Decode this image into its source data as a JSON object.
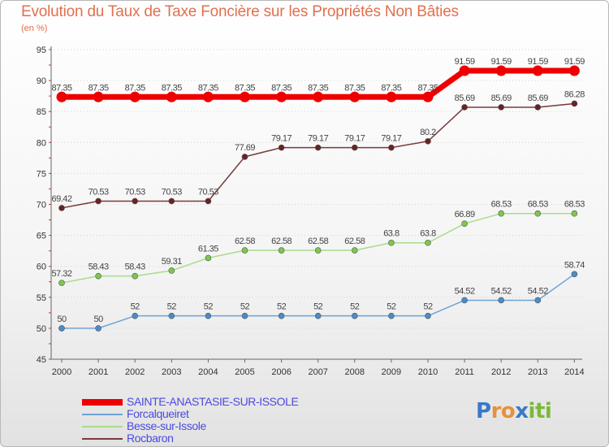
{
  "title": "Evolution du Taux de Taxe Foncière sur les Propriétés Non Bâties",
  "unit_label": "(en %)",
  "chart_data": {
    "type": "line",
    "title": "Evolution du Taux de Taxe Foncière sur les Propriétés Non Bâties",
    "ylabel": "(en %)",
    "xlabel": "",
    "ylim": [
      45,
      95
    ],
    "yticks": [
      45,
      50,
      55,
      60,
      65,
      70,
      75,
      80,
      85,
      90,
      95
    ],
    "grid": true,
    "categories": [
      "2000",
      "2001",
      "2002",
      "2003",
      "2004",
      "2005",
      "2006",
      "2007",
      "2008",
      "2009",
      "2010",
      "2011",
      "2012",
      "2013",
      "2014"
    ],
    "series": [
      {
        "name": "SAINTE-ANASTASIE-SUR-ISSOLE",
        "color": "#ee0000",
        "label_color": "#4a4ae0",
        "values": [
          87.35,
          87.35,
          87.35,
          87.35,
          87.35,
          87.35,
          87.35,
          87.35,
          87.35,
          87.35,
          87.35,
          91.59,
          91.59,
          91.59,
          91.59
        ],
        "labels": [
          "87.35",
          "87.35",
          "87.35",
          "87.35",
          "87.35",
          "87.35",
          "87.35",
          "87.35",
          "87.35",
          "87.35",
          "87.35",
          "91.59",
          "91.59",
          "91.59",
          "91.59"
        ]
      },
      {
        "name": "Forcalqueiret",
        "color": "#6fa3d6",
        "point_color": "#4a8cc8",
        "label_color": "#4a4ae0",
        "values": [
          50,
          50,
          52,
          52,
          52,
          52,
          52,
          52,
          52,
          52,
          52,
          54.52,
          54.52,
          54.52,
          58.74
        ],
        "labels": [
          "50",
          "50",
          "52",
          "52",
          "52",
          "52",
          "52",
          "52",
          "52",
          "52",
          "52",
          "54.52",
          "54.52",
          "54.52",
          "58.74"
        ]
      },
      {
        "name": "Besse-sur-Issole",
        "color": "#a8dc8c",
        "point_color": "#7cc84a",
        "label_color": "#4a4ae0",
        "values": [
          57.32,
          58.43,
          58.43,
          59.31,
          61.35,
          62.58,
          62.58,
          62.58,
          62.58,
          63.8,
          63.8,
          66.89,
          68.53,
          68.53,
          68.53
        ],
        "labels": [
          "57.32",
          "58.43",
          "58.43",
          "59.31",
          "61.35",
          "62.58",
          "62.58",
          "62.58",
          "62.58",
          "63.8",
          "63.8",
          "66.89",
          "68.53",
          "68.53",
          "68.53"
        ]
      },
      {
        "name": "Rocbaron",
        "color": "#7a3a3a",
        "point_color": "#6a2222",
        "label_color": "#4a4ae0",
        "values": [
          69.42,
          70.53,
          70.53,
          70.53,
          70.53,
          77.69,
          79.17,
          79.17,
          79.17,
          79.17,
          80.2,
          85.69,
          85.69,
          85.69,
          86.28
        ],
        "labels": [
          "69.42",
          "70.53",
          "70.53",
          "70.53",
          "70.53",
          "77.69",
          "79.17",
          "79.17",
          "79.17",
          "79.17",
          "80.2",
          "85.69",
          "85.69",
          "85.69",
          "86.28"
        ]
      }
    ]
  },
  "logo": {
    "text": "Proxiti",
    "letters": [
      "P",
      "r",
      "o",
      "x",
      "i",
      "t",
      "i"
    ],
    "colors": [
      "#3a78c8",
      "#e8903a",
      "#e8903a",
      "#3a78c8",
      "#7cb83a",
      "#7cb83a",
      "#7cb83a"
    ]
  }
}
